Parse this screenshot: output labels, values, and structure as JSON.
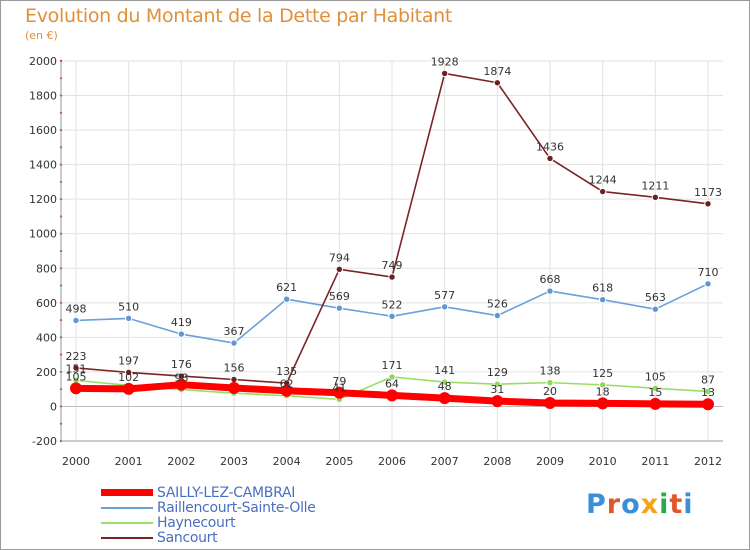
{
  "title": "Evolution du Montant de la Dette par Habitant",
  "subtitle": "(en €)",
  "logo": {
    "text": "Proxiti",
    "colors": [
      "#3a8fd8",
      "#e2562b",
      "#3a8fd8",
      "#f2a51a",
      "#2ea84a",
      "#e2562b",
      "#3a8fd8"
    ]
  },
  "chart_data": {
    "type": "line",
    "x": [
      "2000",
      "2001",
      "2002",
      "2003",
      "2004",
      "2005",
      "2006",
      "2007",
      "2008",
      "2009",
      "2010",
      "2011",
      "2012"
    ],
    "ylim": [
      -200,
      2000
    ],
    "yticks": [
      -200,
      0,
      200,
      400,
      600,
      800,
      1000,
      1200,
      1400,
      1600,
      1800,
      2000
    ],
    "grid": true,
    "legend_placement": "bottom-left",
    "series": [
      {
        "name": "SAILLY-LEZ-CAMBRAI",
        "color": "#ff0000",
        "values": [
          105,
          102,
          126,
          107,
          91,
          79,
          64,
          48,
          31,
          20,
          18,
          15,
          13
        ],
        "labels": [
          "105",
          "102",
          "",
          "",
          "",
          "79",
          "64",
          "48",
          "31",
          "20",
          "18",
          "15",
          "13"
        ]
      },
      {
        "name": "Raillencourt-Sainte-Olle",
        "color": "#6aa0d8",
        "values": [
          498,
          510,
          419,
          367,
          621,
          569,
          522,
          577,
          526,
          668,
          618,
          563,
          710
        ],
        "labels": [
          "498",
          "510",
          "419",
          "367",
          "621",
          "569",
          "522",
          "577",
          "526",
          "668",
          "618",
          "563",
          "710"
        ]
      },
      {
        "name": "Haynecourt",
        "color": "#99dd66",
        "values": [
          151,
          122,
          98,
          77,
          62,
          41,
          171,
          141,
          129,
          138,
          125,
          105,
          87
        ],
        "labels": [
          "151",
          "",
          "98",
          "",
          "62",
          "41",
          "171",
          "141",
          "129",
          "138",
          "125",
          "105",
          "87"
        ]
      },
      {
        "name": "Sancourt",
        "color": "#7a2428",
        "values": [
          223,
          197,
          176,
          156,
          135,
          794,
          749,
          1928,
          1874,
          1436,
          1244,
          1211,
          1173
        ],
        "labels": [
          "223",
          "197",
          "176",
          "156",
          "135",
          "794",
          "749",
          "1928",
          "1874",
          "1436",
          "1244",
          "1211",
          "1173"
        ]
      }
    ]
  }
}
